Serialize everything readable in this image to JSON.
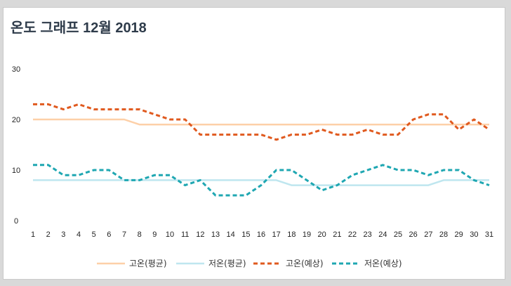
{
  "chart_data": {
    "type": "line",
    "title": "온도 그래프 12월 2018",
    "xlabel": "",
    "ylabel": "",
    "x": [
      1,
      2,
      3,
      4,
      5,
      6,
      7,
      8,
      9,
      10,
      11,
      12,
      13,
      14,
      15,
      16,
      17,
      18,
      19,
      20,
      21,
      22,
      23,
      24,
      25,
      26,
      27,
      28,
      29,
      30,
      31
    ],
    "ylim": [
      0,
      30
    ],
    "yticks": [
      0,
      10,
      20,
      30
    ],
    "grid": false,
    "legend_position": "bottom",
    "series": [
      {
        "name": "고온(평균)",
        "color": "#fdd0a8",
        "style": "solid",
        "values": [
          20,
          20,
          20,
          20,
          20,
          20,
          20,
          19,
          19,
          19,
          19,
          19,
          19,
          19,
          19,
          19,
          19,
          19,
          19,
          19,
          19,
          19,
          19,
          19,
          19,
          19,
          19,
          19,
          19,
          19,
          19
        ]
      },
      {
        "name": "저온(평균)",
        "color": "#bfe6ef",
        "style": "solid",
        "values": [
          8,
          8,
          8,
          8,
          8,
          8,
          8,
          8,
          8,
          8,
          8,
          8,
          8,
          8,
          8,
          8,
          8,
          7,
          7,
          7,
          7,
          7,
          7,
          7,
          7,
          7,
          7,
          8,
          8,
          8,
          8
        ]
      },
      {
        "name": "고온(예상)",
        "color": "#e05a1f",
        "style": "dashed",
        "values": [
          23,
          23,
          22,
          23,
          22,
          22,
          22,
          22,
          21,
          20,
          20,
          17,
          17,
          17,
          17,
          17,
          16,
          17,
          17,
          18,
          17,
          17,
          18,
          17,
          17,
          20,
          21,
          21,
          18,
          20,
          18
        ]
      },
      {
        "name": "저온(예상)",
        "color": "#1fa7b2",
        "style": "dashed",
        "values": [
          11,
          11,
          9,
          9,
          10,
          10,
          8,
          8,
          9,
          9,
          7,
          8,
          5,
          5,
          5,
          7,
          10,
          10,
          8,
          6,
          7,
          9,
          10,
          11,
          10,
          10,
          9,
          10,
          10,
          8,
          7
        ]
      }
    ]
  }
}
